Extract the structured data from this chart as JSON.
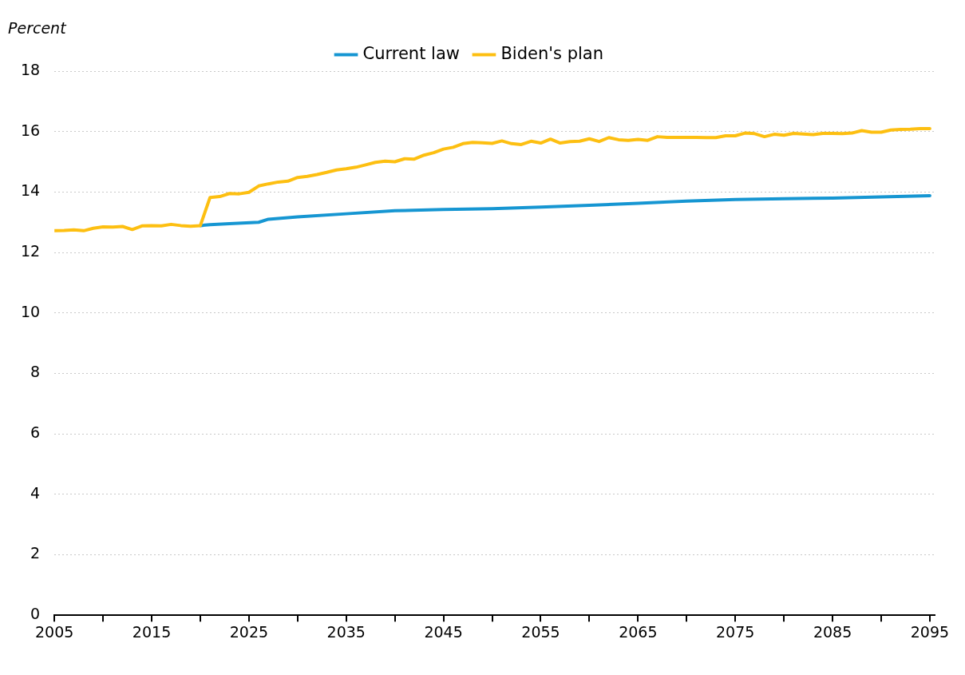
{
  "chart_data": {
    "type": "line",
    "ylabel": "Percent",
    "x": [
      2005,
      2006,
      2007,
      2008,
      2009,
      2010,
      2011,
      2012,
      2013,
      2014,
      2015,
      2016,
      2017,
      2018,
      2019,
      2020,
      2021,
      2022,
      2023,
      2024,
      2025,
      2026,
      2027,
      2028,
      2029,
      2030,
      2031,
      2032,
      2033,
      2034,
      2035,
      2036,
      2037,
      2038,
      2039,
      2040,
      2041,
      2042,
      2043,
      2044,
      2045,
      2046,
      2047,
      2048,
      2049,
      2050,
      2051,
      2052,
      2053,
      2054,
      2055,
      2056,
      2057,
      2058,
      2059,
      2060,
      2061,
      2062,
      2063,
      2064,
      2065,
      2066,
      2067,
      2068,
      2069,
      2070,
      2071,
      2072,
      2073,
      2074,
      2075,
      2076,
      2077,
      2078,
      2079,
      2080,
      2081,
      2082,
      2083,
      2084,
      2085,
      2086,
      2087,
      2088,
      2089,
      2090,
      2091,
      2092,
      2093,
      2094,
      2095
    ],
    "series": [
      {
        "name": "Current law",
        "color": "#1696d2",
        "x": [
          2020,
          2021,
          2023,
          2026,
          2027,
          2030,
          2035,
          2040,
          2045,
          2050,
          2055,
          2060,
          2065,
          2070,
          2075,
          2080,
          2085,
          2090,
          2095
        ],
        "values": [
          12.89,
          12.92,
          12.95,
          13.0,
          13.1,
          13.18,
          13.28,
          13.38,
          13.42,
          13.45,
          13.5,
          13.56,
          13.63,
          13.7,
          13.75,
          13.78,
          13.8,
          13.84,
          13.88
        ]
      },
      {
        "name": "Biden's plan",
        "color": "#fdbf11",
        "values": [
          12.72,
          12.73,
          12.75,
          12.72,
          12.8,
          12.85,
          12.84,
          12.86,
          12.76,
          12.88,
          12.89,
          12.88,
          12.93,
          12.89,
          12.87,
          12.89,
          13.82,
          13.85,
          13.95,
          13.94,
          13.99,
          14.2,
          14.27,
          14.33,
          14.36,
          14.48,
          14.52,
          14.58,
          14.65,
          14.73,
          14.77,
          14.82,
          14.9,
          14.98,
          15.02,
          15.0,
          15.1,
          15.09,
          15.22,
          15.3,
          15.42,
          15.48,
          15.6,
          15.64,
          15.63,
          15.61,
          15.69,
          15.6,
          15.57,
          15.68,
          15.62,
          15.75,
          15.62,
          15.67,
          15.68,
          15.76,
          15.67,
          15.8,
          15.73,
          15.71,
          15.74,
          15.71,
          15.83,
          15.81,
          15.81,
          15.81,
          15.81,
          15.8,
          15.8,
          15.86,
          15.86,
          15.95,
          15.93,
          15.83,
          15.91,
          15.88,
          15.94,
          15.92,
          15.9,
          15.94,
          15.94,
          15.93,
          15.95,
          16.03,
          15.98,
          15.98,
          16.05,
          16.07,
          16.08,
          16.1,
          16.1
        ]
      }
    ],
    "xlim": [
      2005,
      2095.5
    ],
    "xticks": [
      2005,
      {
        "value": 2010,
        "label": null
      },
      2015,
      {
        "value": 2020,
        "label": null
      },
      2025,
      {
        "value": 2030,
        "label": null
      },
      2035,
      {
        "value": 2040,
        "label": null
      },
      2045,
      {
        "value": 2050,
        "label": null
      },
      2055,
      {
        "value": 2060,
        "label": null
      },
      2065,
      {
        "value": 2070,
        "label": null
      },
      2075,
      {
        "value": 2080,
        "label": null
      },
      2085,
      {
        "value": 2090,
        "label": null
      },
      2095
    ],
    "ylim": [
      0,
      18
    ],
    "yticks": [
      0,
      2,
      4,
      6,
      8,
      10,
      12,
      14,
      16,
      18
    ],
    "grid": "y",
    "legend": "top",
    "marker": "none",
    "line_style": "solid"
  }
}
